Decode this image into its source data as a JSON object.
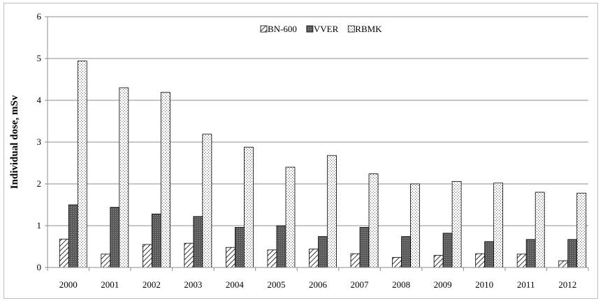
{
  "chart_data": {
    "type": "bar",
    "title": "",
    "xlabel": "",
    "ylabel": "Individual dose, mSv",
    "ylim": [
      0,
      6
    ],
    "yticks": [
      0,
      1,
      2,
      3,
      4,
      5,
      6
    ],
    "grid": true,
    "legend_position": "top-center",
    "categories": [
      "2000",
      "2001",
      "2002",
      "2003",
      "2004",
      "2005",
      "2006",
      "2007",
      "2008",
      "2009",
      "2010",
      "2011",
      "2012"
    ],
    "series": [
      {
        "name": "BN-600",
        "pattern": "diagonal-hatch",
        "values": [
          0.68,
          0.32,
          0.55,
          0.58,
          0.48,
          0.42,
          0.44,
          0.33,
          0.24,
          0.29,
          0.33,
          0.32,
          0.16
        ]
      },
      {
        "name": "VVER",
        "pattern": "dark-grid",
        "values": [
          1.5,
          1.44,
          1.28,
          1.22,
          0.96,
          1.0,
          0.74,
          0.96,
          0.74,
          0.82,
          0.62,
          0.67,
          0.67
        ]
      },
      {
        "name": "RBMK",
        "pattern": "fine-dots",
        "values": [
          4.94,
          4.3,
          4.19,
          3.19,
          2.88,
          2.4,
          2.68,
          2.24,
          2.0,
          2.06,
          2.02,
          1.8,
          1.78
        ]
      }
    ]
  }
}
